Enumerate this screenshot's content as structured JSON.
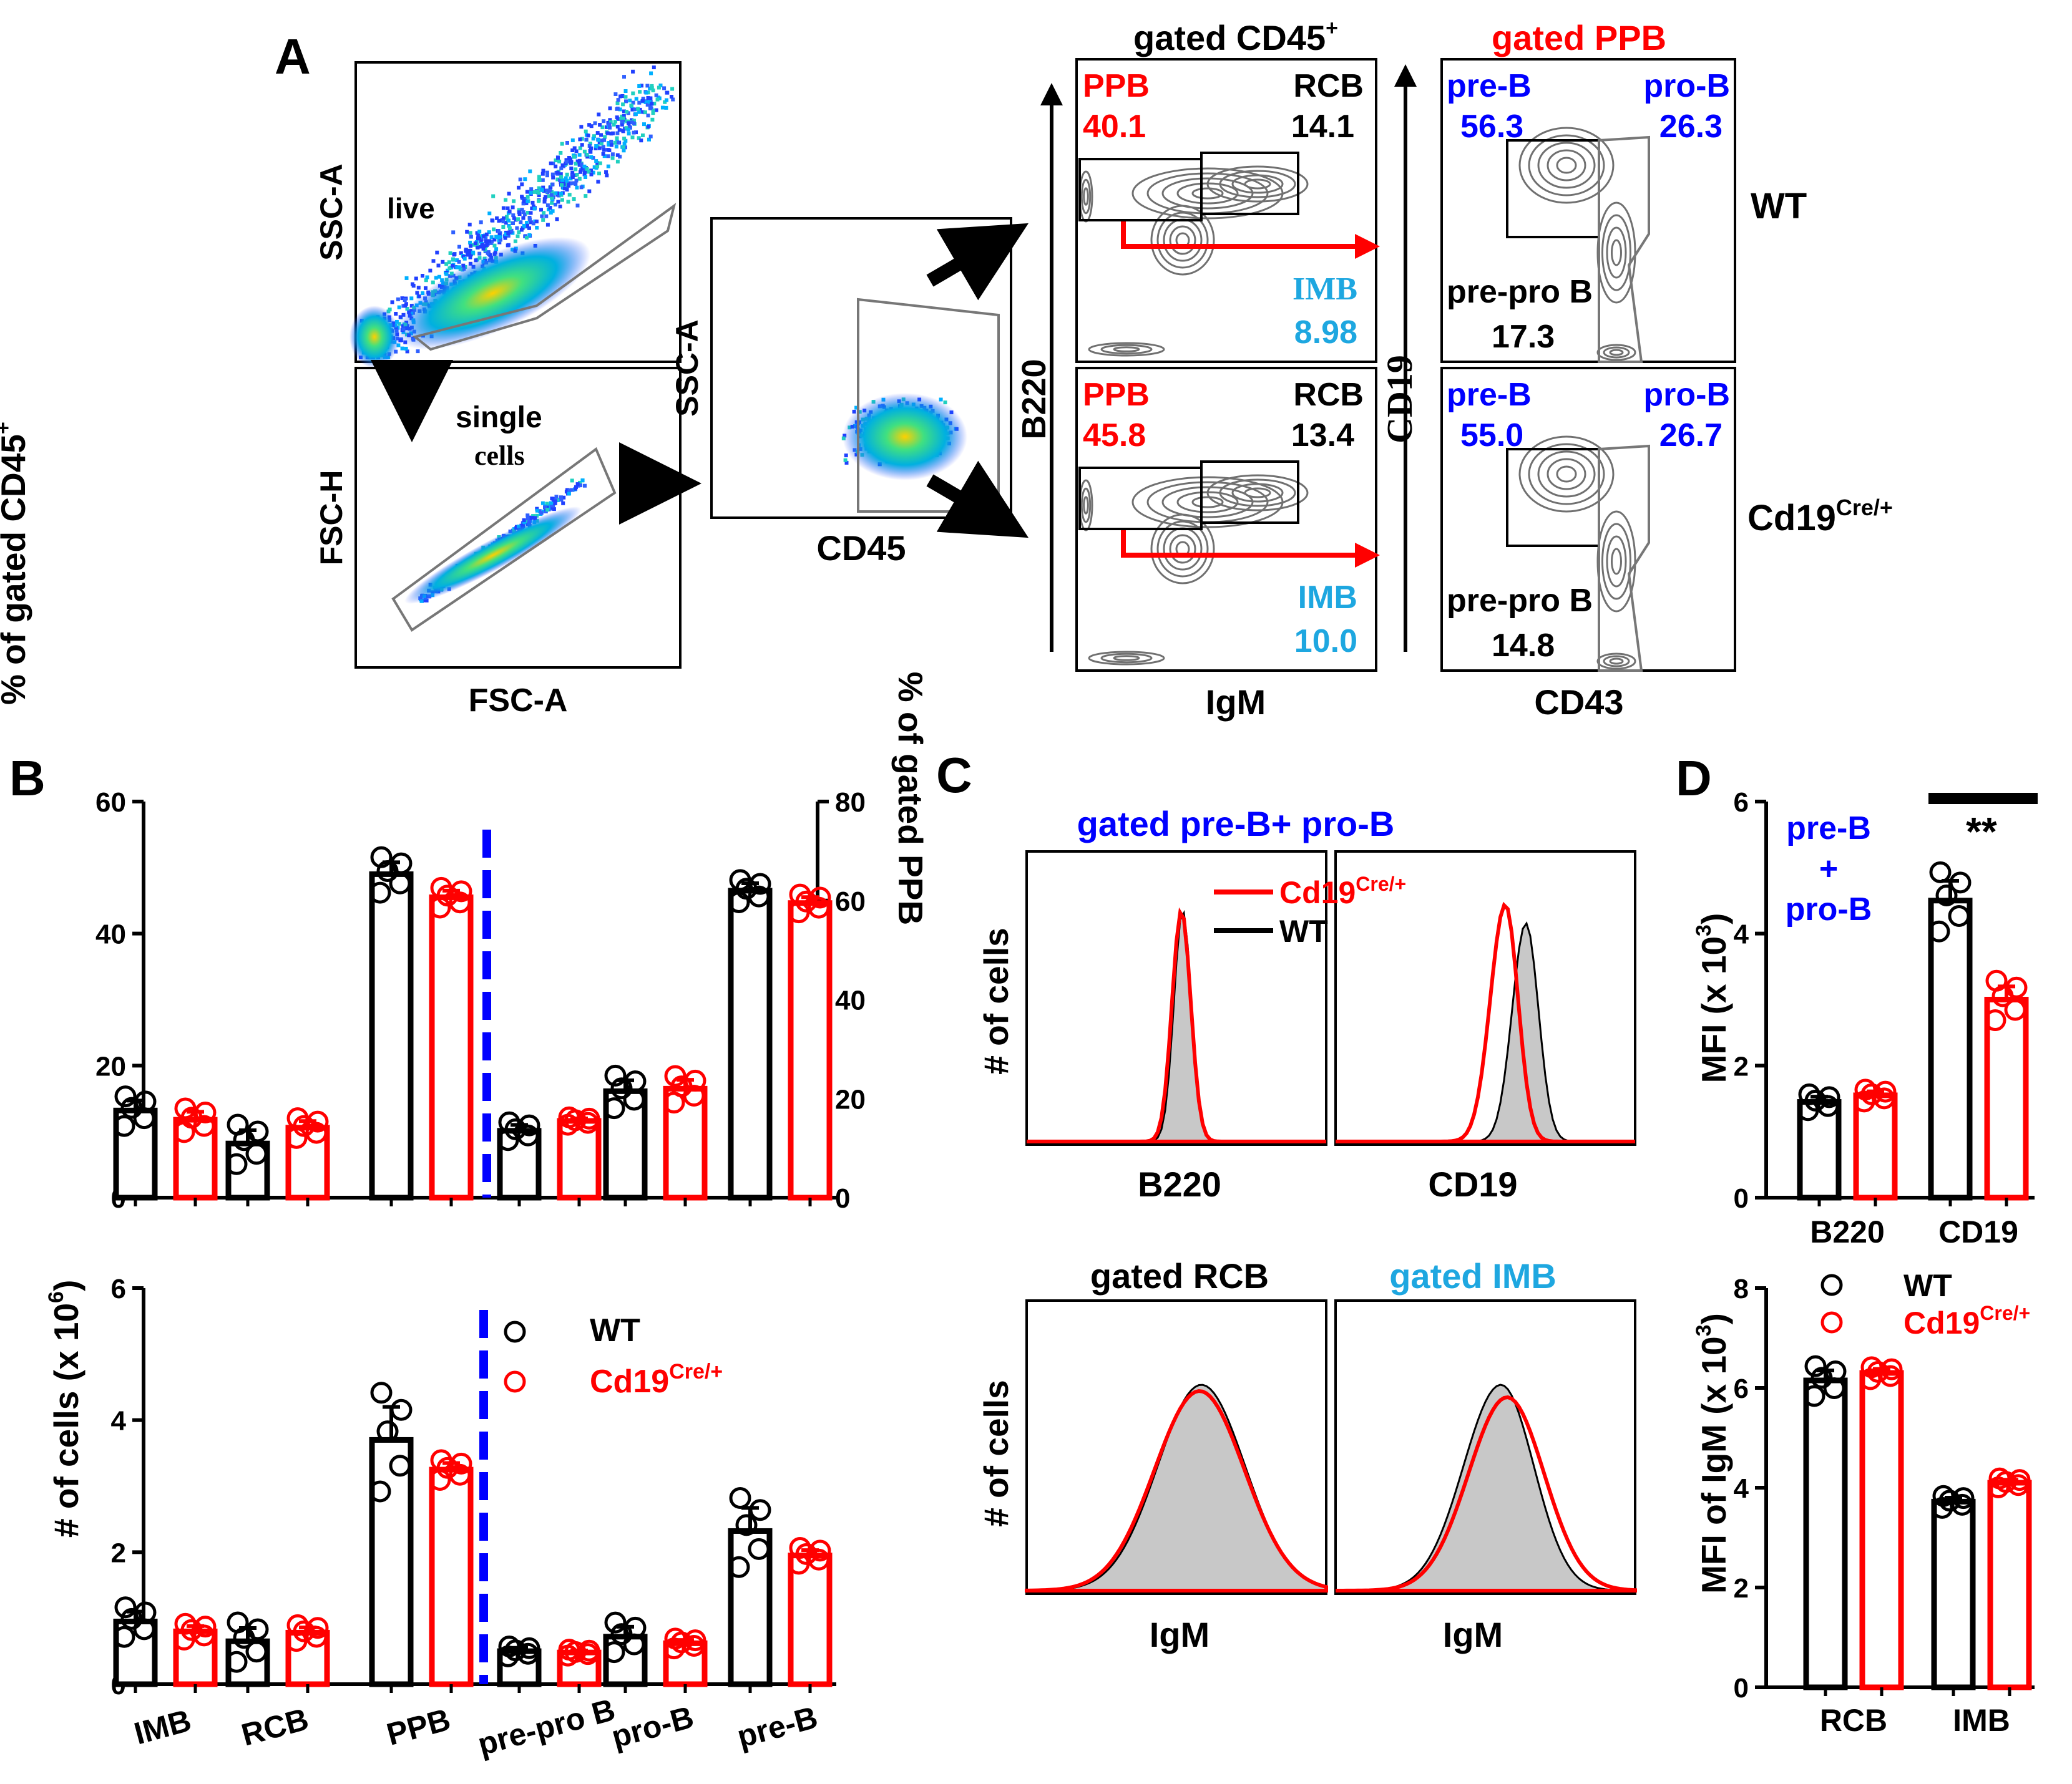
{
  "colors": {
    "wt": "#000000",
    "cre": "#ff0000",
    "blue": "#0000ff",
    "cyan": "#1ea7e0",
    "hist_fill": "#c8c8c8",
    "contour": "#707070"
  },
  "panelA": {
    "label": "A",
    "p1": {
      "y_label": "SSC-A",
      "gate": "live"
    },
    "p2": {
      "y_label": "FSC-H",
      "x_label": "FSC-A",
      "gate_line1": "single",
      "gate_line2": "cells"
    },
    "p3": {
      "y_label": "SSC-A",
      "x_label": "CD45"
    },
    "b220": {
      "header_main": "gated CD45",
      "header_sup": "+",
      "y_label": "B220",
      "x_label": "IgM",
      "wt": {
        "ppb_label": "PPB",
        "ppb": "40.1",
        "rcb_label": "RCB",
        "rcb": "14.1",
        "imb_label": "IMB",
        "imb": "8.98"
      },
      "cre": {
        "ppb_label": "PPB",
        "ppb": "45.8",
        "rcb_label": "RCB",
        "rcb": "13.4",
        "imb_label": "IMB",
        "imb": "10.0"
      }
    },
    "cd19": {
      "header": "gated PPB",
      "y_label": "CD19",
      "x_label": "CD43",
      "wt": {
        "preb_label": "pre-B",
        "preb": "56.3",
        "prob_label": "pro-B",
        "prob": "26.3",
        "prepro_label": "pre-pro B",
        "prepro": "17.3"
      },
      "cre": {
        "preb_label": "pre-B",
        "preb": "55.0",
        "prob_label": "pro-B",
        "prob": "26.7",
        "prepro_label": "pre-pro B",
        "prepro": "14.8"
      }
    },
    "row_wt": "WT",
    "row_cre_main": "Cd19",
    "row_cre_sup": "Cre/+"
  },
  "panelB_label": "B",
  "panelC_label": "C",
  "panelD_label": "D",
  "chart_data": [
    {
      "id": "B_top",
      "type": "bar",
      "y_left_label": "% of gated CD45",
      "y_left_sup": "+",
      "y_right_label": "% of gated PPB",
      "categories": [
        "IMB",
        "RCB",
        "PPB",
        "pre-pro B",
        "pro-B",
        "pre-B"
      ],
      "ylim_left": [
        0,
        60
      ],
      "ylim_right": [
        0,
        80
      ],
      "yticks_left": [
        "0",
        "20",
        "40",
        "60"
      ],
      "yticks_right": [
        "0",
        "20",
        "40",
        "60",
        "80"
      ],
      "series": [
        {
          "name": "WT",
          "values": [
            13.2,
            8.2,
            49.0,
            13.5,
            21.5,
            62.0
          ],
          "sem": [
            1.5,
            2.0,
            1.8,
            1.2,
            2.2,
            1.5
          ]
        },
        {
          "name": "Cd19Cre/+",
          "values": [
            11.8,
            10.6,
            45.5,
            15.5,
            22.0,
            59.5
          ],
          "sem": [
            1.2,
            1.0,
            1.0,
            0.5,
            1.8,
            1.2
          ]
        }
      ]
    },
    {
      "id": "B_bottom",
      "type": "bar",
      "y_label": "# of cells (x 10",
      "y_sup": "6",
      "y_close": ")",
      "categories": [
        "IMB",
        "RCB",
        "PPB",
        "pre-pro B",
        "pro-B",
        "pre-B"
      ],
      "ylim": [
        0,
        6
      ],
      "yticks": [
        "0",
        "2",
        "4",
        "6"
      ],
      "series": [
        {
          "name": "WT",
          "values": [
            0.95,
            0.65,
            3.7,
            0.5,
            0.72,
            2.32
          ],
          "sem": [
            0.15,
            0.2,
            0.5,
            0.05,
            0.15,
            0.35
          ]
        },
        {
          "name": "Cd19Cre/+",
          "values": [
            0.8,
            0.78,
            3.25,
            0.48,
            0.62,
            1.95
          ],
          "sem": [
            0.08,
            0.08,
            0.1,
            0.03,
            0.05,
            0.08
          ]
        }
      ],
      "legend": {
        "wt": "WT",
        "cre_main": "Cd19",
        "cre_sup": "Cre/+"
      }
    },
    {
      "id": "C_top",
      "type": "histogram",
      "title": "gated pre-B+ pro-B",
      "ylabel": "# of cells",
      "xlabels": [
        "B220",
        "CD19"
      ],
      "legend": {
        "cre_main": "Cd19",
        "cre_sup": "Cre/+",
        "wt": "WT"
      }
    },
    {
      "id": "C_bottom",
      "type": "histogram",
      "titles": [
        "gated RCB",
        "gated IMB"
      ],
      "ylabel": "# of cells",
      "xlabels": [
        "IgM",
        "IgM"
      ]
    },
    {
      "id": "D_top",
      "type": "bar",
      "ylabel": "MFI (x 10",
      "y_sup": "3",
      "y_close": ")",
      "categories": [
        "B220",
        "CD19"
      ],
      "ylim": [
        0,
        6
      ],
      "yticks": [
        "0",
        "2",
        "4",
        "6"
      ],
      "annotation_lines": [
        "pre-B",
        "+",
        "pro-B"
      ],
      "significance": "**",
      "series": [
        {
          "name": "WT",
          "values": [
            1.45,
            4.5
          ],
          "sem": [
            0.08,
            0.3
          ]
        },
        {
          "name": "Cd19Cre/+",
          "values": [
            1.55,
            3.0
          ],
          "sem": [
            0.06,
            0.2
          ]
        }
      ]
    },
    {
      "id": "D_bottom",
      "type": "bar",
      "ylabel": "MFI of IgM (x 10",
      "y_sup": "3",
      "y_close": ")",
      "categories": [
        "RCB",
        "IMB"
      ],
      "ylim": [
        0,
        8
      ],
      "yticks": [
        "0",
        "2",
        "4",
        "6",
        "8"
      ],
      "series": [
        {
          "name": "WT",
          "values": [
            6.15,
            3.72
          ],
          "sem": [
            0.2,
            0.08
          ]
        },
        {
          "name": "Cd19Cre/+",
          "values": [
            6.3,
            4.1
          ],
          "sem": [
            0.08,
            0.06
          ]
        }
      ],
      "legend": {
        "wt": "WT",
        "cre_main": "Cd19",
        "cre_sup": "Cre/+"
      }
    }
  ]
}
